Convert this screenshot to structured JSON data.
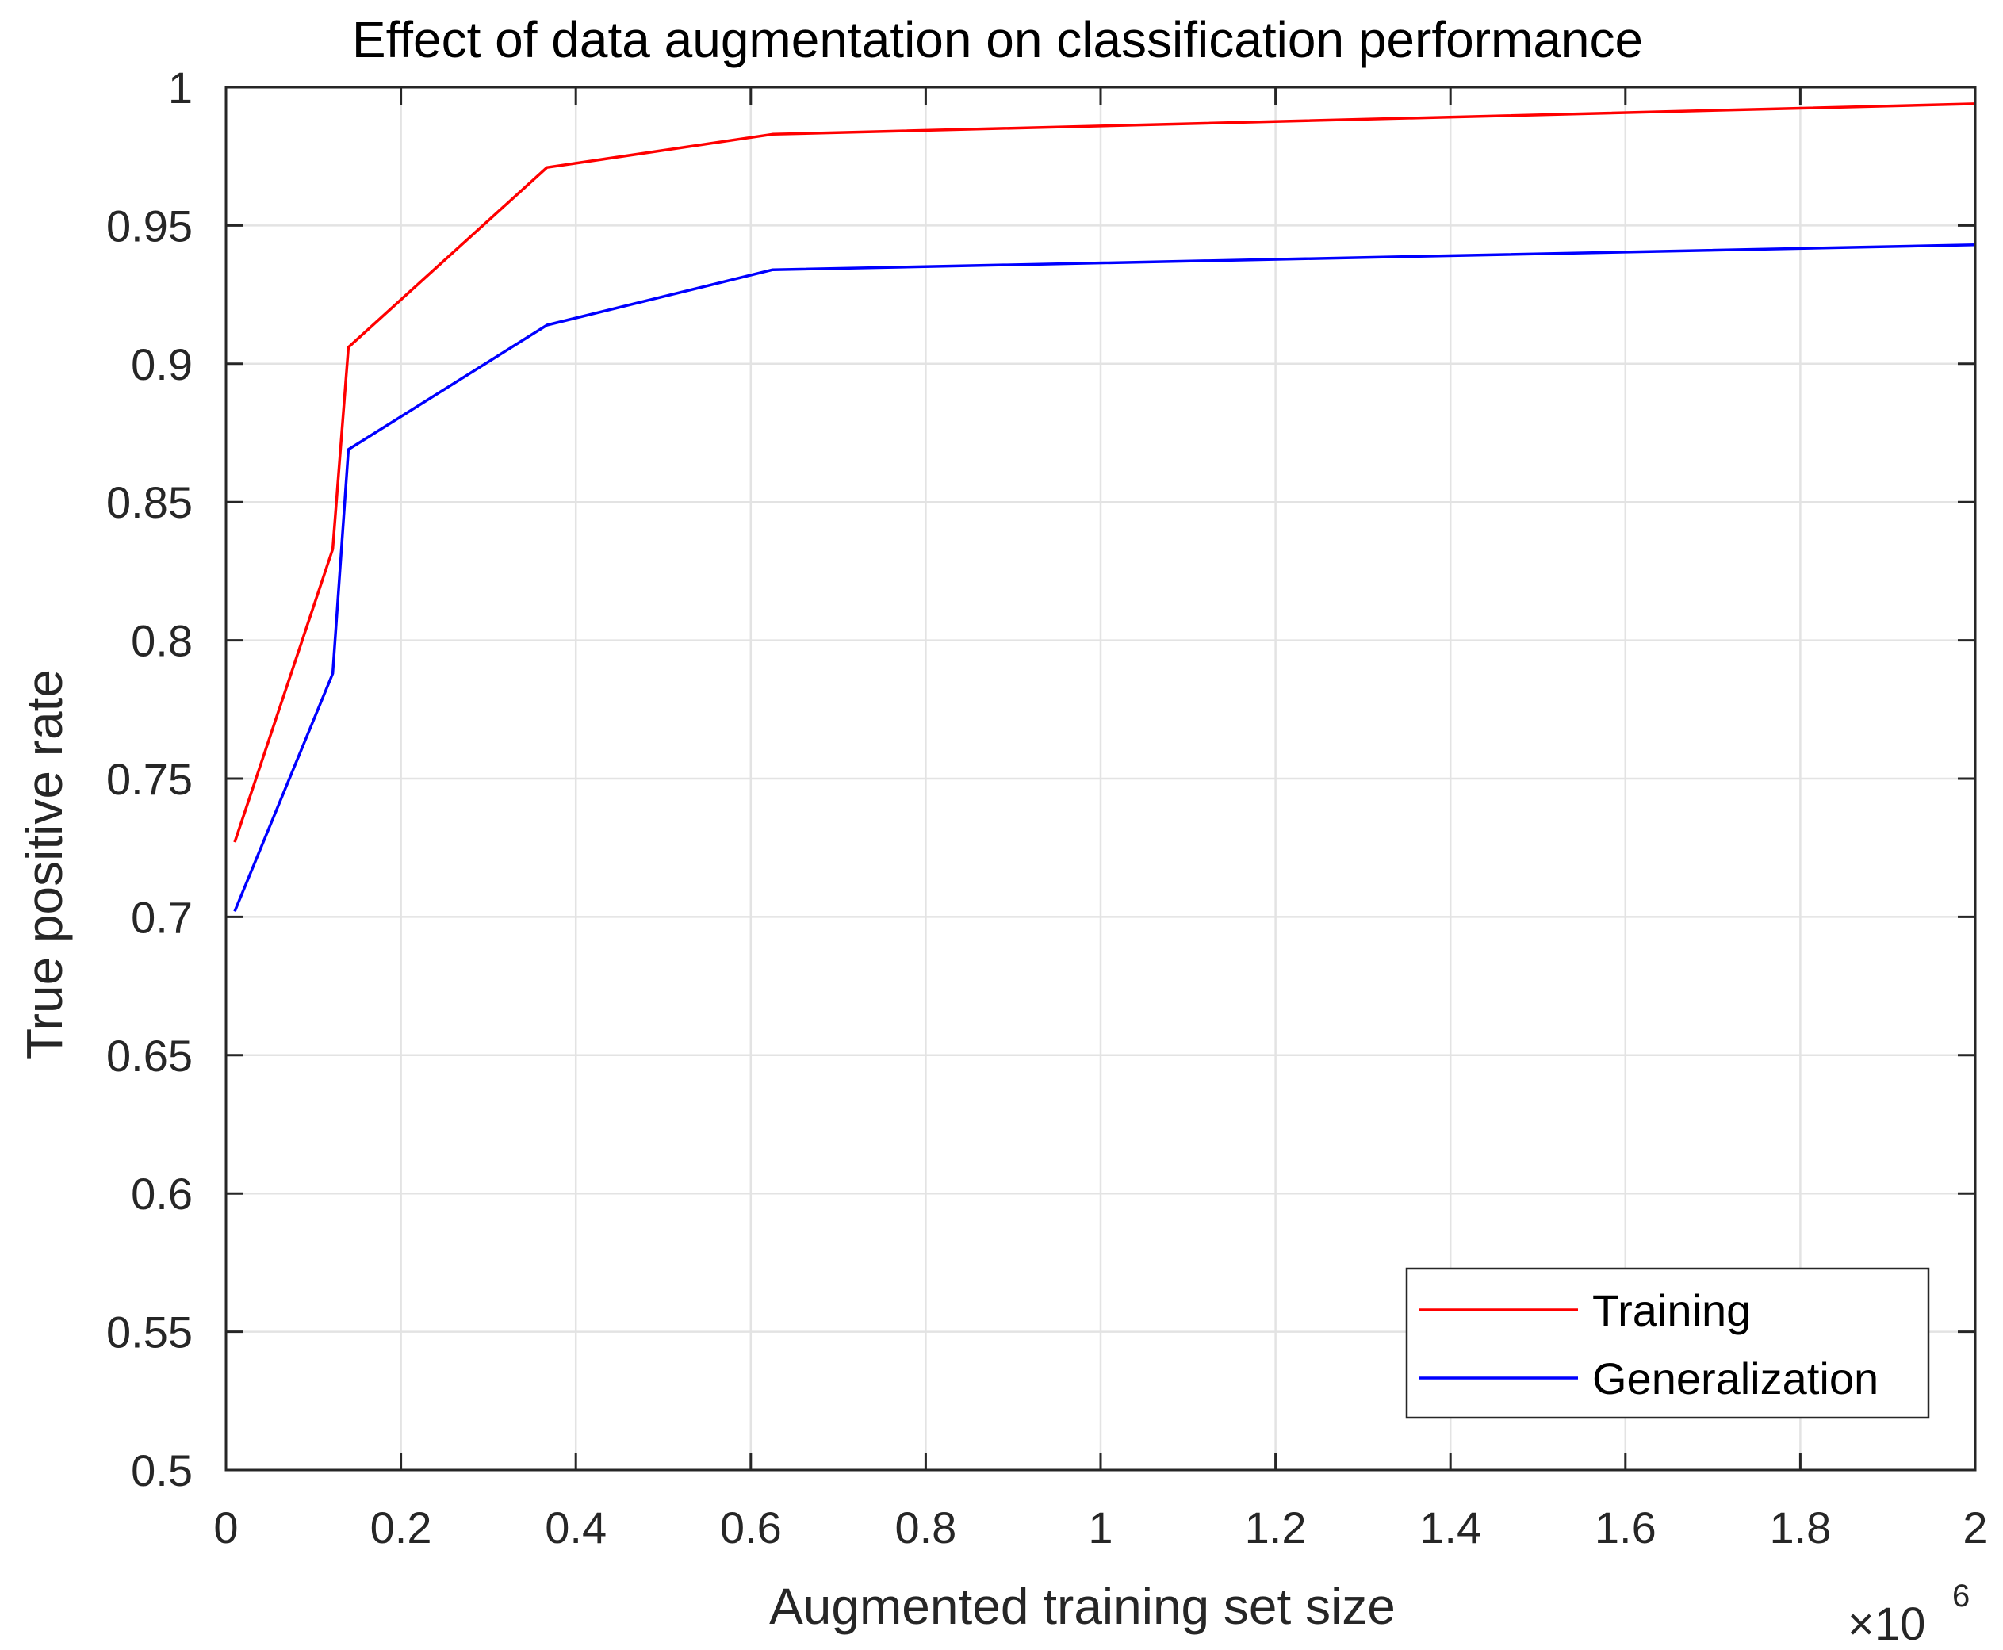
{
  "chart_data": {
    "type": "line",
    "title": "Effect of data augmentation on classification performance",
    "xlabel": "Augmented training set size",
    "ylabel": "True positive rate",
    "x_multiplier_base": "×10",
    "x_multiplier_exponent": "6",
    "xlim": [
      0,
      2
    ],
    "ylim": [
      0.5,
      1
    ],
    "xticks": [
      0,
      0.2,
      0.4,
      0.6,
      0.8,
      1,
      1.2,
      1.4,
      1.6,
      1.8,
      2
    ],
    "xtick_labels": [
      "0",
      "0.2",
      "0.4",
      "0.6",
      "0.8",
      "1",
      "1.2",
      "1.4",
      "1.6",
      "1.8",
      "2"
    ],
    "yticks": [
      0.5,
      0.55,
      0.6,
      0.65,
      0.7,
      0.75,
      0.8,
      0.85,
      0.9,
      0.95,
      1
    ],
    "ytick_labels": [
      "0.5",
      "0.55",
      "0.6",
      "0.65",
      "0.7",
      "0.75",
      "0.8",
      "0.85",
      "0.9",
      "0.95",
      "1"
    ],
    "grid": true,
    "legend_position": "bottom-right",
    "series": [
      {
        "name": "Training",
        "color": "#ff0000",
        "x": [
          0.01,
          0.122,
          0.14,
          0.367,
          0.625,
          2.0
        ],
        "y": [
          0.727,
          0.833,
          0.906,
          0.971,
          0.983,
          0.994
        ]
      },
      {
        "name": "Generalization",
        "color": "#0000ff",
        "x": [
          0.01,
          0.122,
          0.14,
          0.367,
          0.625,
          2.0
        ],
        "y": [
          0.702,
          0.788,
          0.869,
          0.914,
          0.934,
          0.943
        ]
      }
    ]
  }
}
